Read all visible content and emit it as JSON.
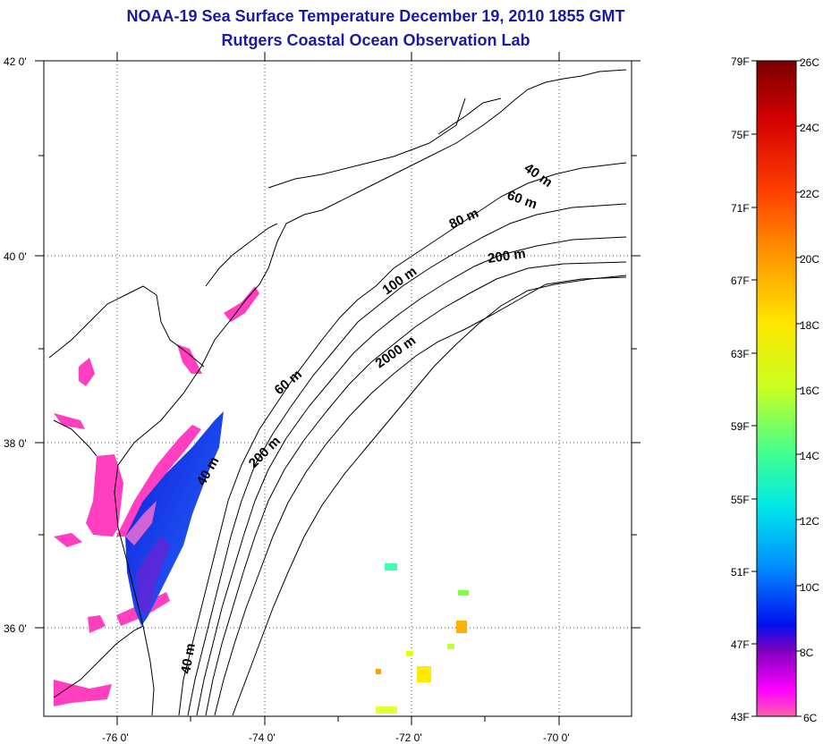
{
  "title": "NOAA-19 Sea Surface Temperature December 19, 2010 1855 GMT",
  "subtitle": "Rutgers Coastal Ocean Observation Lab",
  "map": {
    "lat_labels": [
      "42 0'",
      "40 0'",
      "38 0'",
      "36 0'"
    ],
    "lon_labels": [
      "-76 0'",
      "-74 0'",
      "-72 0'",
      "-70 0'"
    ],
    "depth_contour_labels": [
      "40 m",
      "60 m",
      "80 m",
      "200 m",
      "100 m",
      "2000 m",
      "60 m",
      "200 m",
      "40 m",
      "40 m"
    ]
  },
  "colorbar": {
    "f_labels": [
      "79F",
      "75F",
      "71F",
      "67F",
      "63F",
      "59F",
      "55F",
      "51F",
      "47F",
      "43F"
    ],
    "c_labels": [
      "26C",
      "24C",
      "22C",
      "20C",
      "18C",
      "16C",
      "14C",
      "12C",
      "10C",
      "8C",
      "6C"
    ],
    "colors": [
      "#7a0000",
      "#d40000",
      "#ff4000",
      "#ff9900",
      "#ffe600",
      "#c8ff20",
      "#40ff90",
      "#00e8e8",
      "#0090ff",
      "#0010f0",
      "#8000c0",
      "#ff00ff",
      "#ff60b0"
    ]
  }
}
